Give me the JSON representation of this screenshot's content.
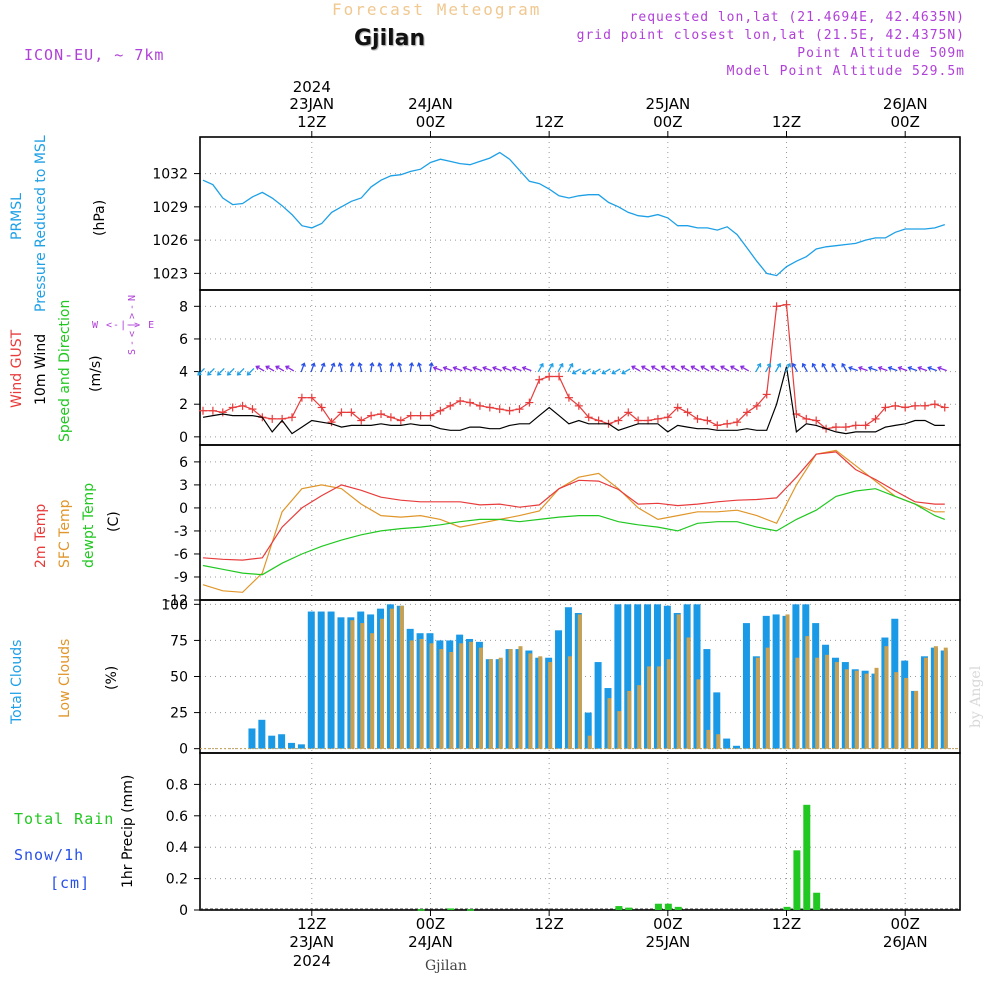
{
  "header": {
    "title": "Forecast Meteogram",
    "location": "Gjilan",
    "model": "ICON-EU, ~ 7km",
    "info": [
      "requested lon,lat (21.4694E, 42.4635N)",
      "grid point closest lon,lat (21.5E, 42.4375N)",
      "Point Altitude 509m",
      "Model Point Altitude 529.5m"
    ],
    "watermark": "by Angel",
    "footer_location": "Gjilan"
  },
  "time_axis": {
    "top": [
      {
        "line1": "2024",
        "line2": "23JAN",
        "line3": "12Z"
      },
      {
        "line1": "",
        "line2": "24JAN",
        "line3": "00Z"
      },
      {
        "line1": "",
        "line2": "",
        "line3": "12Z"
      },
      {
        "line1": "",
        "line2": "25JAN",
        "line3": "00Z"
      },
      {
        "line1": "",
        "line2": "",
        "line3": "12Z"
      },
      {
        "line1": "",
        "line2": "26JAN",
        "line3": "00Z"
      }
    ],
    "bottom": [
      {
        "line1": "12Z",
        "line2": "23JAN",
        "line3": "2024"
      },
      {
        "line1": "00Z",
        "line2": "24JAN",
        "line3": ""
      },
      {
        "line1": "12Z",
        "line2": "",
        "line3": ""
      },
      {
        "line1": "00Z",
        "line2": "25JAN",
        "line3": ""
      },
      {
        "line1": "12Z",
        "line2": "",
        "line3": ""
      },
      {
        "line1": "00Z",
        "line2": "26JAN",
        "line3": ""
      }
    ]
  },
  "labels": {
    "pressure": {
      "l1": "PRMSL",
      "l2": "Pressure Reduced to MSL",
      "unit": "(hPa)"
    },
    "wind": {
      "l1": "Wind GUST",
      "l2": "10m Wind",
      "l3": "Speed and Direction",
      "unit": "(m/s)",
      "compass_ns": "N\n|\nv\n|\nS",
      "compass_we": "W <-|-> E"
    },
    "temp": {
      "l1": "2m Temp",
      "l2": "SFC Temp",
      "l3": "dewpt Temp",
      "unit": "(C)"
    },
    "clouds": {
      "l1": "Total Clouds",
      "l2": "Low Clouds",
      "unit": "(%)"
    },
    "precip": {
      "l1": "Total  Rain",
      "l2": "Snow/1h",
      "l3": "[cm]",
      "unit": "1hr Precip (mm)"
    }
  },
  "colors": {
    "pressure": "#1ea0e6",
    "gust": "#e83c3c",
    "wind": "#000000",
    "barb_light": "#1ea0e6",
    "barb_dark": "#2850e8",
    "barb_violet": "#8a2be2",
    "temp2m": "#e83c3c",
    "sfc": "#e0962a",
    "dewpt": "#22c822",
    "total_clouds": "#1a9ae6",
    "low_clouds": "#c8a050",
    "rain": "#22c822",
    "snow": "#2850e8",
    "purple_text": "#b040d8",
    "title_faint": "#f0c890"
  },
  "chart_data": [
    {
      "type": "line",
      "id": "pressure",
      "title": "PRMSL Pressure Reduced to MSL",
      "ylabel": "(hPa)",
      "ylim": [
        1021.5,
        1035.3
      ],
      "yticks": [
        1023,
        1026,
        1029,
        1032
      ],
      "x_hours": [
        0,
        1,
        2,
        3,
        4,
        5,
        6,
        7,
        8,
        9,
        10,
        11,
        12,
        13,
        14,
        15,
        16,
        17,
        18,
        19,
        20,
        21,
        22,
        23,
        24,
        25,
        26,
        27,
        28,
        29,
        30,
        31,
        32,
        33,
        34,
        35,
        36,
        37,
        38,
        39,
        40,
        41,
        42,
        43,
        44,
        45,
        46,
        47,
        48,
        49,
        50,
        51,
        52,
        53,
        54,
        55,
        56,
        57,
        58,
        59,
        60,
        61,
        62,
        63,
        64,
        65,
        66,
        67,
        68,
        69,
        70,
        71,
        72,
        73,
        74,
        75
      ],
      "series": [
        {
          "name": "PRMSL",
          "values": [
            1031.4,
            1031.0,
            1029.8,
            1029.2,
            1029.3,
            1029.9,
            1030.3,
            1029.8,
            1029.1,
            1028.3,
            1027.3,
            1027.1,
            1027.5,
            1028.5,
            1029.0,
            1029.5,
            1029.8,
            1030.8,
            1031.4,
            1031.8,
            1031.9,
            1032.2,
            1032.4,
            1033.0,
            1033.3,
            1033.1,
            1032.9,
            1032.8,
            1033.1,
            1033.4,
            1033.9,
            1033.3,
            1032.3,
            1031.3,
            1031.1,
            1030.6,
            1030.0,
            1029.8,
            1030.0,
            1030.1,
            1030.1,
            1029.4,
            1029.0,
            1028.5,
            1028.2,
            1028.1,
            1028.3,
            1028.0,
            1027.3,
            1027.3,
            1027.1,
            1027.1,
            1026.9,
            1027.2,
            1026.5,
            1025.3,
            1024.1,
            1023.0,
            1022.8,
            1023.6,
            1024.1,
            1024.5,
            1025.2,
            1025.4,
            1025.5,
            1025.6,
            1025.7,
            1026.0,
            1026.2,
            1026.2,
            1026.7,
            1027.0,
            1027.0,
            1027.0,
            1027.1,
            1027.4
          ]
        }
      ]
    },
    {
      "type": "line",
      "id": "wind",
      "title": "Wind GUST / 10m Wind Speed and Direction",
      "ylabel": "(m/s)",
      "ylim": [
        -0.5,
        9.0
      ],
      "yticks": [
        0,
        2,
        4,
        6,
        8
      ],
      "x_hours": [
        0,
        1,
        2,
        3,
        4,
        5,
        6,
        7,
        8,
        9,
        10,
        11,
        12,
        13,
        14,
        15,
        16,
        17,
        18,
        19,
        20,
        21,
        22,
        23,
        24,
        25,
        26,
        27,
        28,
        29,
        30,
        31,
        32,
        33,
        34,
        35,
        36,
        37,
        38,
        39,
        40,
        41,
        42,
        43,
        44,
        45,
        46,
        47,
        48,
        49,
        50,
        51,
        52,
        53,
        54,
        55,
        56,
        57,
        58,
        59,
        60,
        61,
        62,
        63,
        64,
        65,
        66,
        67,
        68,
        69,
        70,
        71,
        72,
        73,
        74,
        75
      ],
      "series": [
        {
          "name": "Wind GUST",
          "values": [
            1.6,
            1.6,
            1.5,
            1.8,
            1.9,
            1.7,
            1.2,
            1.1,
            1.1,
            1.2,
            2.4,
            2.4,
            1.8,
            0.9,
            1.5,
            1.5,
            1.0,
            1.3,
            1.4,
            1.2,
            1.0,
            1.3,
            1.3,
            1.3,
            1.6,
            1.9,
            2.2,
            2.1,
            1.9,
            1.8,
            1.7,
            1.6,
            1.7,
            2.1,
            3.5,
            3.7,
            3.7,
            2.4,
            1.9,
            1.2,
            1.0,
            0.8,
            1.0,
            1.5,
            1.0,
            1.0,
            1.1,
            1.2,
            1.8,
            1.5,
            1.1,
            1.0,
            0.7,
            0.8,
            0.9,
            1.5,
            1.9,
            2.6,
            8.0,
            8.1,
            1.4,
            1.1,
            1.0,
            0.5,
            0.6,
            0.6,
            0.7,
            0.7,
            1.1,
            1.8,
            1.9,
            1.8,
            1.9,
            1.9,
            2.0,
            1.8
          ]
        },
        {
          "name": "10m Wind",
          "values": [
            1.2,
            1.3,
            1.4,
            1.3,
            1.3,
            1.3,
            1.2,
            0.3,
            1.0,
            0.2,
            0.6,
            1.0,
            0.9,
            0.8,
            0.6,
            0.7,
            0.7,
            0.7,
            0.8,
            0.7,
            0.7,
            0.8,
            0.7,
            0.7,
            0.5,
            0.4,
            0.4,
            0.6,
            0.6,
            0.5,
            0.5,
            0.7,
            0.8,
            0.8,
            1.3,
            1.8,
            1.3,
            0.8,
            1.0,
            0.8,
            0.8,
            0.8,
            0.4,
            0.6,
            0.8,
            0.8,
            0.8,
            0.3,
            0.7,
            0.6,
            0.5,
            0.5,
            0.4,
            0.4,
            0.4,
            0.5,
            0.4,
            0.4,
            2.0,
            4.3,
            0.3,
            0.8,
            0.7,
            0.5,
            0.3,
            0.2,
            0.3,
            0.3,
            0.3,
            0.6,
            0.7,
            0.8,
            1.0,
            1.0,
            0.7,
            0.7
          ]
        }
      ]
    },
    {
      "type": "line",
      "id": "temperature",
      "title": "2m Temp / SFC Temp / dewpt Temp",
      "ylabel": "(C)",
      "ylim": [
        -12,
        8.2
      ],
      "yticks": [
        -12,
        -9,
        -6,
        -3,
        0,
        3,
        6
      ],
      "x_hours": [
        0,
        2,
        4,
        6,
        8,
        10,
        12,
        14,
        16,
        18,
        20,
        22,
        24,
        26,
        28,
        30,
        32,
        34,
        36,
        38,
        40,
        42,
        44,
        46,
        48,
        50,
        52,
        54,
        56,
        58,
        60,
        62,
        64,
        66,
        68,
        70,
        72,
        74,
        75
      ],
      "series": [
        {
          "name": "2m Temp",
          "values": [
            -6.5,
            -6.7,
            -6.8,
            -6.5,
            -2.5,
            0,
            1.6,
            3.0,
            2.3,
            1.4,
            1.0,
            0.8,
            0.8,
            0.8,
            0.4,
            0.5,
            0.1,
            0.4,
            2.5,
            3.6,
            3.5,
            2.4,
            0.5,
            0.6,
            0.3,
            0.5,
            0.8,
            1.0,
            1.1,
            1.3,
            4.0,
            7.0,
            7.3,
            5.0,
            3.7,
            2.2,
            0.8,
            0.5,
            0.5
          ]
        },
        {
          "name": "SFC Temp",
          "values": [
            -10,
            -10.8,
            -11,
            -8.5,
            -0.5,
            2.5,
            3.0,
            2.5,
            0.5,
            -1.0,
            -1.2,
            -1.0,
            -1.5,
            -2.5,
            -2.0,
            -1.5,
            -1.0,
            -0.4,
            2.5,
            4.0,
            4.5,
            2.5,
            0,
            -1.5,
            -1.0,
            -0.5,
            -0.5,
            -0.3,
            -1.0,
            -2.0,
            3.0,
            7.0,
            7.5,
            5.5,
            3.5,
            1.5,
            0.5,
            -0.5,
            -0.5
          ]
        },
        {
          "name": "dewpt Temp",
          "values": [
            -7.5,
            -8.0,
            -8.5,
            -8.7,
            -7.2,
            -6.0,
            -5.0,
            -4.2,
            -3.5,
            -3.0,
            -2.7,
            -2.5,
            -2.2,
            -1.8,
            -1.5,
            -1.5,
            -1.8,
            -1.5,
            -1.2,
            -1.0,
            -1.0,
            -1.8,
            -2.2,
            -2.5,
            -3.0,
            -2.0,
            -1.8,
            -1.8,
            -2.5,
            -3.0,
            -1.5,
            -0.3,
            1.5,
            2.2,
            2.5,
            1.5,
            0.5,
            -1.0,
            -1.5
          ]
        }
      ]
    },
    {
      "type": "bar",
      "id": "clouds",
      "title": "Total Clouds / Low Clouds",
      "ylabel": "(%)",
      "ylim": [
        -3,
        103
      ],
      "yticks": [
        0,
        25,
        50,
        75,
        100
      ],
      "x_hours": [
        0,
        1,
        2,
        3,
        4,
        5,
        6,
        7,
        8,
        9,
        10,
        11,
        12,
        13,
        14,
        15,
        16,
        17,
        18,
        19,
        20,
        21,
        22,
        23,
        24,
        25,
        26,
        27,
        28,
        29,
        30,
        31,
        32,
        33,
        34,
        35,
        36,
        37,
        38,
        39,
        40,
        41,
        42,
        43,
        44,
        45,
        46,
        47,
        48,
        49,
        50,
        51,
        52,
        53,
        54,
        55,
        56,
        57,
        58,
        59,
        60,
        61,
        62,
        63,
        64,
        65,
        66,
        67,
        68,
        69,
        70,
        71,
        72,
        73,
        74,
        75
      ],
      "series": [
        {
          "name": "Total Clouds",
          "values": [
            0,
            0,
            0,
            0,
            0,
            14,
            20,
            9,
            10,
            4,
            3,
            95,
            95,
            95,
            91,
            91,
            95,
            93,
            97,
            100,
            99,
            83,
            80,
            80,
            75,
            75,
            79,
            76,
            74,
            62,
            62,
            69,
            69,
            68,
            63,
            63,
            82,
            98,
            94,
            25,
            60,
            42,
            100,
            100,
            100,
            100,
            100,
            99,
            94,
            100,
            100,
            69,
            39,
            7,
            2,
            87,
            64,
            92,
            93,
            92,
            100,
            100,
            87,
            72,
            63,
            60,
            55,
            54,
            52,
            77,
            90,
            61,
            40,
            64,
            70,
            68
          ]
        },
        {
          "name": "Low Clouds",
          "values": [
            0,
            0,
            0,
            0,
            0,
            0,
            0,
            0,
            0,
            0,
            0,
            0,
            8,
            0,
            0,
            0,
            0,
            0,
            0,
            0,
            0,
            0,
            0,
            0,
            0,
            0,
            0,
            0,
            0,
            0,
            0,
            0,
            0,
            0,
            0,
            0,
            18,
            0,
            0,
            0,
            0,
            0,
            0,
            0,
            0,
            0,
            0,
            0,
            0,
            0,
            0,
            0,
            0,
            0,
            0,
            0,
            0,
            0,
            0,
            0,
            0,
            0,
            0,
            0,
            0,
            0,
            0,
            0,
            0,
            0,
            0,
            0,
            0,
            0,
            0,
            0
          ]
        },
        {
          "name": "Low Clouds (olive)",
          "values": [
            0,
            0,
            0,
            0,
            0,
            0,
            0,
            0,
            0,
            0,
            0,
            0,
            0,
            0,
            0,
            89,
            87,
            80,
            90,
            97,
            99,
            75,
            76,
            73,
            69,
            67,
            73,
            74,
            70,
            62,
            63,
            69,
            71,
            66,
            64,
            60,
            0,
            64,
            93,
            9,
            0,
            35,
            26,
            40,
            44,
            57,
            57,
            62,
            93,
            77,
            48,
            13,
            10,
            0,
            0,
            0,
            63,
            70,
            0,
            93,
            63,
            78,
            63,
            65,
            60,
            55,
            54,
            52,
            56,
            71,
            53,
            49,
            40,
            63,
            71,
            70
          ]
        }
      ]
    },
    {
      "type": "bar",
      "id": "precip",
      "title": "1hr Precip",
      "ylabel": "1hr Precip (mm)",
      "ylim": [
        0,
        1.0
      ],
      "yticks": [
        0,
        0.2,
        0.4,
        0.6,
        0.8
      ],
      "x_hours": [
        22,
        25,
        27,
        42,
        43,
        46,
        47,
        48,
        59,
        60,
        61,
        62
      ],
      "series": [
        {
          "name": "Total Rain",
          "values": [
            0.005,
            0.01,
            0.005,
            0.025,
            0.015,
            0.04,
            0.04,
            0.02,
            0.02,
            0.38,
            0.67,
            0.11
          ]
        }
      ]
    }
  ]
}
